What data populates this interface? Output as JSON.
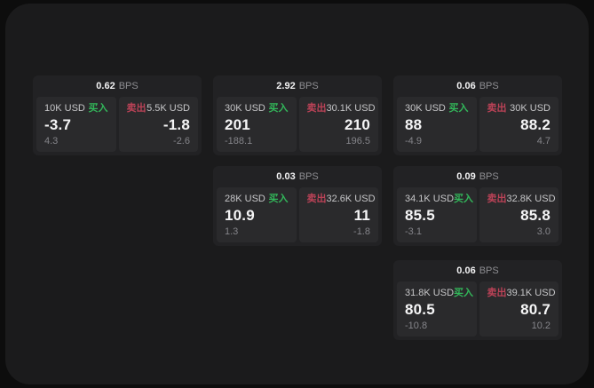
{
  "labels": {
    "bps_unit": "BPS",
    "buy": "买入",
    "sell": "卖出"
  },
  "colors": {
    "page_bg": "#0d0d0d",
    "panel_bg": "#1b1b1c",
    "card_bg": "#222224",
    "pane_bg": "#2a2a2c",
    "buy_green": "#32b75a",
    "sell_red": "#bb4257"
  },
  "cards": [
    {
      "bps": "0.62",
      "buy": {
        "size": "10K USD",
        "price": "-3.7",
        "change": "4.3"
      },
      "sell": {
        "size": "5.5K USD",
        "price": "-1.8",
        "change": "-2.6"
      }
    },
    {
      "bps": "2.92",
      "buy": {
        "size": "30K USD",
        "price": "201",
        "change": "-188.1"
      },
      "sell": {
        "size": "30.1K USD",
        "price": "210",
        "change": "196.5"
      }
    },
    {
      "bps": "0.06",
      "buy": {
        "size": "30K USD",
        "price": "88",
        "change": "-4.9"
      },
      "sell": {
        "size": "30K USD",
        "price": "88.2",
        "change": "4.7"
      }
    },
    {
      "bps": "0.03",
      "buy": {
        "size": "28K USD",
        "price": "10.9",
        "change": "1.3"
      },
      "sell": {
        "size": "32.6K USD",
        "price": "11",
        "change": "-1.8"
      }
    },
    {
      "bps": "0.09",
      "buy": {
        "size": "34.1K USD",
        "price": "85.5",
        "change": "-3.1"
      },
      "sell": {
        "size": "32.8K USD",
        "price": "85.8",
        "change": "3.0"
      }
    },
    {
      "bps": "0.06",
      "buy": {
        "size": "31.8K USD",
        "price": "80.5",
        "change": "-10.8"
      },
      "sell": {
        "size": "39.1K USD",
        "price": "80.7",
        "change": "10.2"
      }
    }
  ]
}
